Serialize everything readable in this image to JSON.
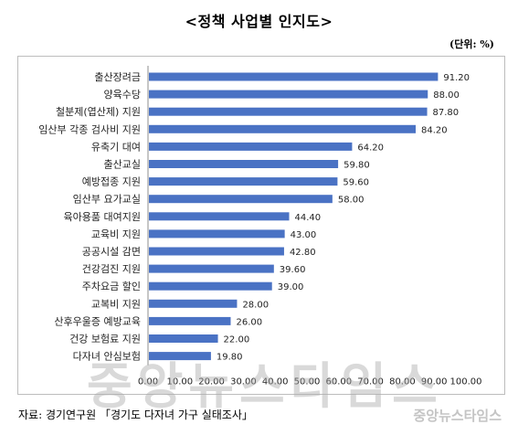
{
  "page": {
    "title": "<정책 사업별 인지도>",
    "unit": "(단위: %)",
    "source": "자료: 경기연구원 「경기도 다자녀 가구 실태조사」",
    "watermark_large": "중앙뉴스타임스",
    "watermark_small": "중앙뉴스타임스"
  },
  "chart_data": {
    "type": "bar",
    "orientation": "horizontal",
    "categories": [
      "출산장려금",
      "양육수당",
      "철분제(엽산제) 지원",
      "임산부 각종 검사비 지원",
      "유축기 대여",
      "출산교실",
      "예방접종 지원",
      "임산부 요가교실",
      "육아용품 대여지원",
      "교육비 지원",
      "공공시설 감면",
      "건강검진 지원",
      "주차요금 할인",
      "교복비 지원",
      "산후우울증 예방교육",
      "건강 보험료 지원",
      "다자녀 안심보험"
    ],
    "values": [
      91.2,
      88.0,
      87.8,
      84.2,
      64.2,
      59.8,
      59.6,
      58.0,
      44.4,
      43.0,
      42.8,
      39.6,
      39.0,
      28.0,
      26.0,
      22.0,
      19.8
    ],
    "value_labels": [
      "91.20",
      "88.00",
      "87.80",
      "84.20",
      "64.20",
      "59.80",
      "59.60",
      "58.00",
      "44.40",
      "43.00",
      "42.80",
      "39.60",
      "39.00",
      "28.00",
      "26.00",
      "22.00",
      "19.80"
    ],
    "xlim": [
      0,
      100
    ],
    "xticks": [
      "0.00",
      "10.00",
      "20.00",
      "30.00",
      "40.00",
      "50.00",
      "60.00",
      "70.00",
      "80.00",
      "90.00",
      "100.00"
    ],
    "grid": false,
    "legend": "none",
    "bar_color": "#4a72c4"
  }
}
